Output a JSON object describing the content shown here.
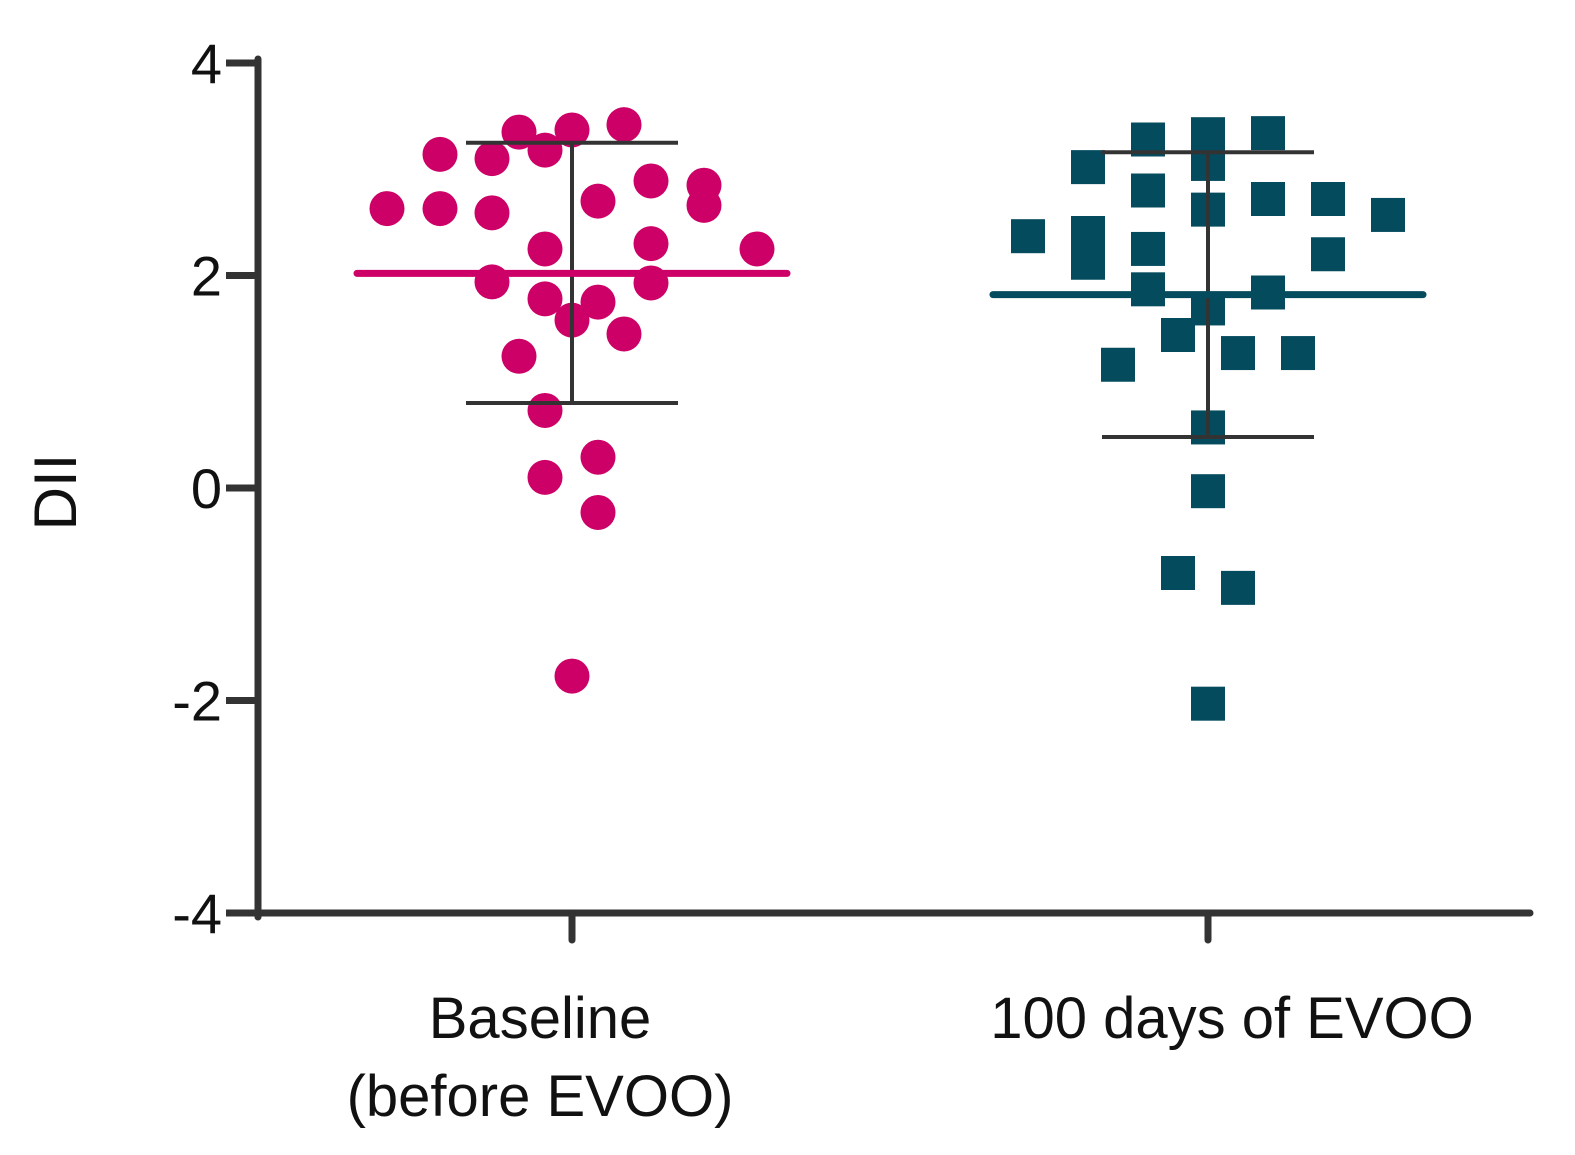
{
  "chart_data": {
    "type": "scatter",
    "ylabel": "DII",
    "ylim": [
      -4,
      4
    ],
    "yticks": [
      -4,
      -2,
      0,
      2,
      4
    ],
    "ytick_labels": [
      "-4",
      "-2",
      "0",
      "2",
      "4"
    ],
    "groups": [
      {
        "name": "baseline",
        "label_lines": [
          "Baseline",
          "(before EVOO)"
        ],
        "marker": "circle",
        "color": "#cc0066",
        "mean": 2.02,
        "sd_upper": 3.25,
        "sd_lower": 0.8,
        "points": [
          {
            "offset": -185,
            "y": 2.63
          },
          {
            "offset": -132,
            "y": 3.14
          },
          {
            "offset": -132,
            "y": 2.63
          },
          {
            "offset": -80,
            "y": 3.1
          },
          {
            "offset": -80,
            "y": 2.59
          },
          {
            "offset": -80,
            "y": 1.94
          },
          {
            "offset": -53,
            "y": 3.35
          },
          {
            "offset": -53,
            "y": 1.24
          },
          {
            "offset": -27,
            "y": 3.18
          },
          {
            "offset": -27,
            "y": 2.25
          },
          {
            "offset": -27,
            "y": 1.78
          },
          {
            "offset": -27,
            "y": 0.73
          },
          {
            "offset": -27,
            "y": 0.1
          },
          {
            "offset": 0,
            "y": 3.37
          },
          {
            "offset": 0,
            "y": 1.58
          },
          {
            "offset": 0,
            "y": -1.77
          },
          {
            "offset": 26,
            "y": 2.7
          },
          {
            "offset": 26,
            "y": 1.75
          },
          {
            "offset": 26,
            "y": 0.29
          },
          {
            "offset": 26,
            "y": -0.23
          },
          {
            "offset": 52,
            "y": 3.42
          },
          {
            "offset": 52,
            "y": 1.45
          },
          {
            "offset": 79,
            "y": 2.89
          },
          {
            "offset": 79,
            "y": 2.3
          },
          {
            "offset": 79,
            "y": 1.93
          },
          {
            "offset": 132,
            "y": 2.85
          },
          {
            "offset": 132,
            "y": 2.66
          },
          {
            "offset": 185,
            "y": 2.25
          }
        ]
      },
      {
        "name": "evoo",
        "label_lines": [
          "100 days of EVOO"
        ],
        "marker": "square",
        "color": "#054b5e",
        "mean": 1.82,
        "sd_upper": 3.16,
        "sd_lower": 0.48,
        "points": [
          {
            "offset": -180,
            "y": 2.37
          },
          {
            "offset": -120,
            "y": 3.02
          },
          {
            "offset": -120,
            "y": 2.4
          },
          {
            "offset": -120,
            "y": 2.12
          },
          {
            "offset": -90,
            "y": 1.16
          },
          {
            "offset": -60,
            "y": 3.28
          },
          {
            "offset": -60,
            "y": 2.8
          },
          {
            "offset": -60,
            "y": 2.25
          },
          {
            "offset": -60,
            "y": 1.87
          },
          {
            "offset": -30,
            "y": 1.44
          },
          {
            "offset": -30,
            "y": -0.8
          },
          {
            "offset": 0,
            "y": 3.33
          },
          {
            "offset": 0,
            "y": 3.05
          },
          {
            "offset": 0,
            "y": 2.62
          },
          {
            "offset": 0,
            "y": 1.69
          },
          {
            "offset": 0,
            "y": 0.57
          },
          {
            "offset": 0,
            "y": -0.03
          },
          {
            "offset": 0,
            "y": -2.03
          },
          {
            "offset": 30,
            "y": 1.27
          },
          {
            "offset": 30,
            "y": -0.94
          },
          {
            "offset": 60,
            "y": 3.34
          },
          {
            "offset": 60,
            "y": 2.72
          },
          {
            "offset": 60,
            "y": 1.84
          },
          {
            "offset": 90,
            "y": 1.27
          },
          {
            "offset": 120,
            "y": 2.72
          },
          {
            "offset": 120,
            "y": 2.2
          },
          {
            "offset": 180,
            "y": 2.57
          }
        ]
      }
    ]
  }
}
